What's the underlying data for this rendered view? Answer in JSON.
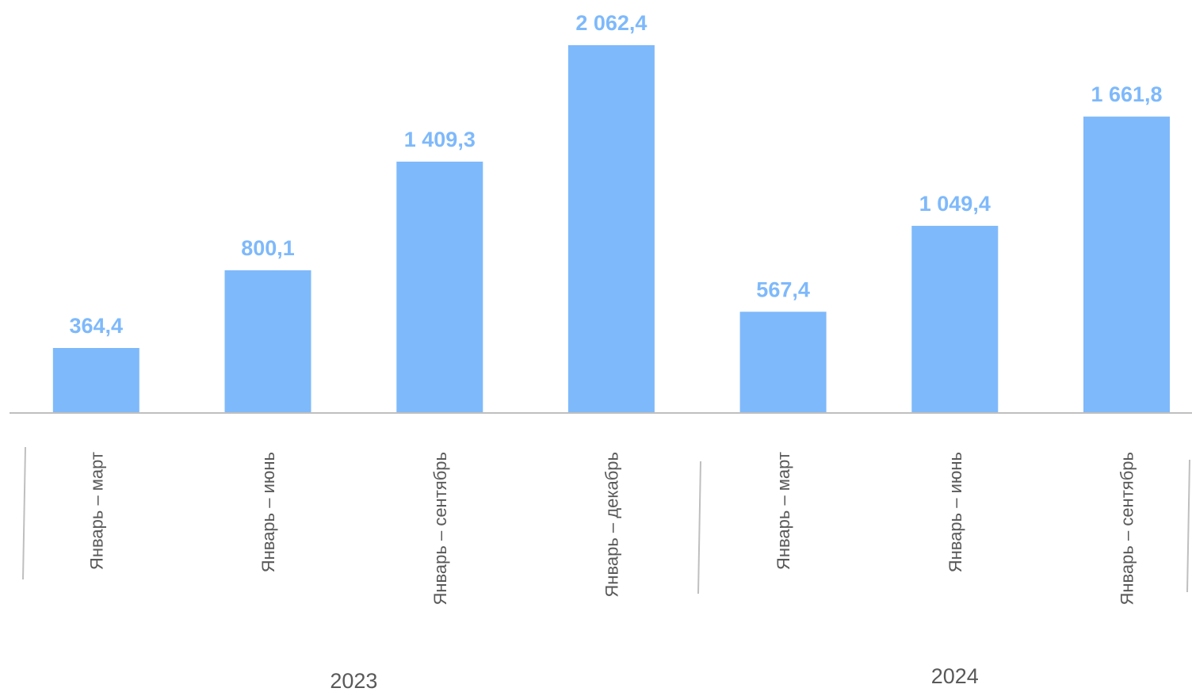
{
  "chart_data": {
    "type": "bar",
    "title": "",
    "xlabel": "",
    "ylabel": "",
    "grid": false,
    "legend": "none",
    "ylim": [
      0,
      2062.4
    ],
    "categories": [
      "Январь – март",
      "Январь – июнь",
      "Январь – сентябрь",
      "Январь – декабрь",
      "Январь – март",
      "Январь – июнь",
      "Январь – сентябрь"
    ],
    "values": [
      364.4,
      800.1,
      1409.3,
      2062.4,
      567.4,
      1049.4,
      1661.8
    ],
    "value_labels": [
      "364,4",
      "800,1",
      "1 409,3",
      "2 062,4",
      "567,4",
      "1 049,4",
      "1 661,8"
    ],
    "groups": [
      {
        "label": "2023",
        "categories": [
          0,
          1,
          2,
          3
        ]
      },
      {
        "label": "2024",
        "categories": [
          4,
          5,
          6
        ]
      }
    ],
    "colors": {
      "bar": "#7EB9FB",
      "value_label": "#7EB9FB",
      "axis": "#BFBFBF",
      "text": "#595959"
    }
  }
}
